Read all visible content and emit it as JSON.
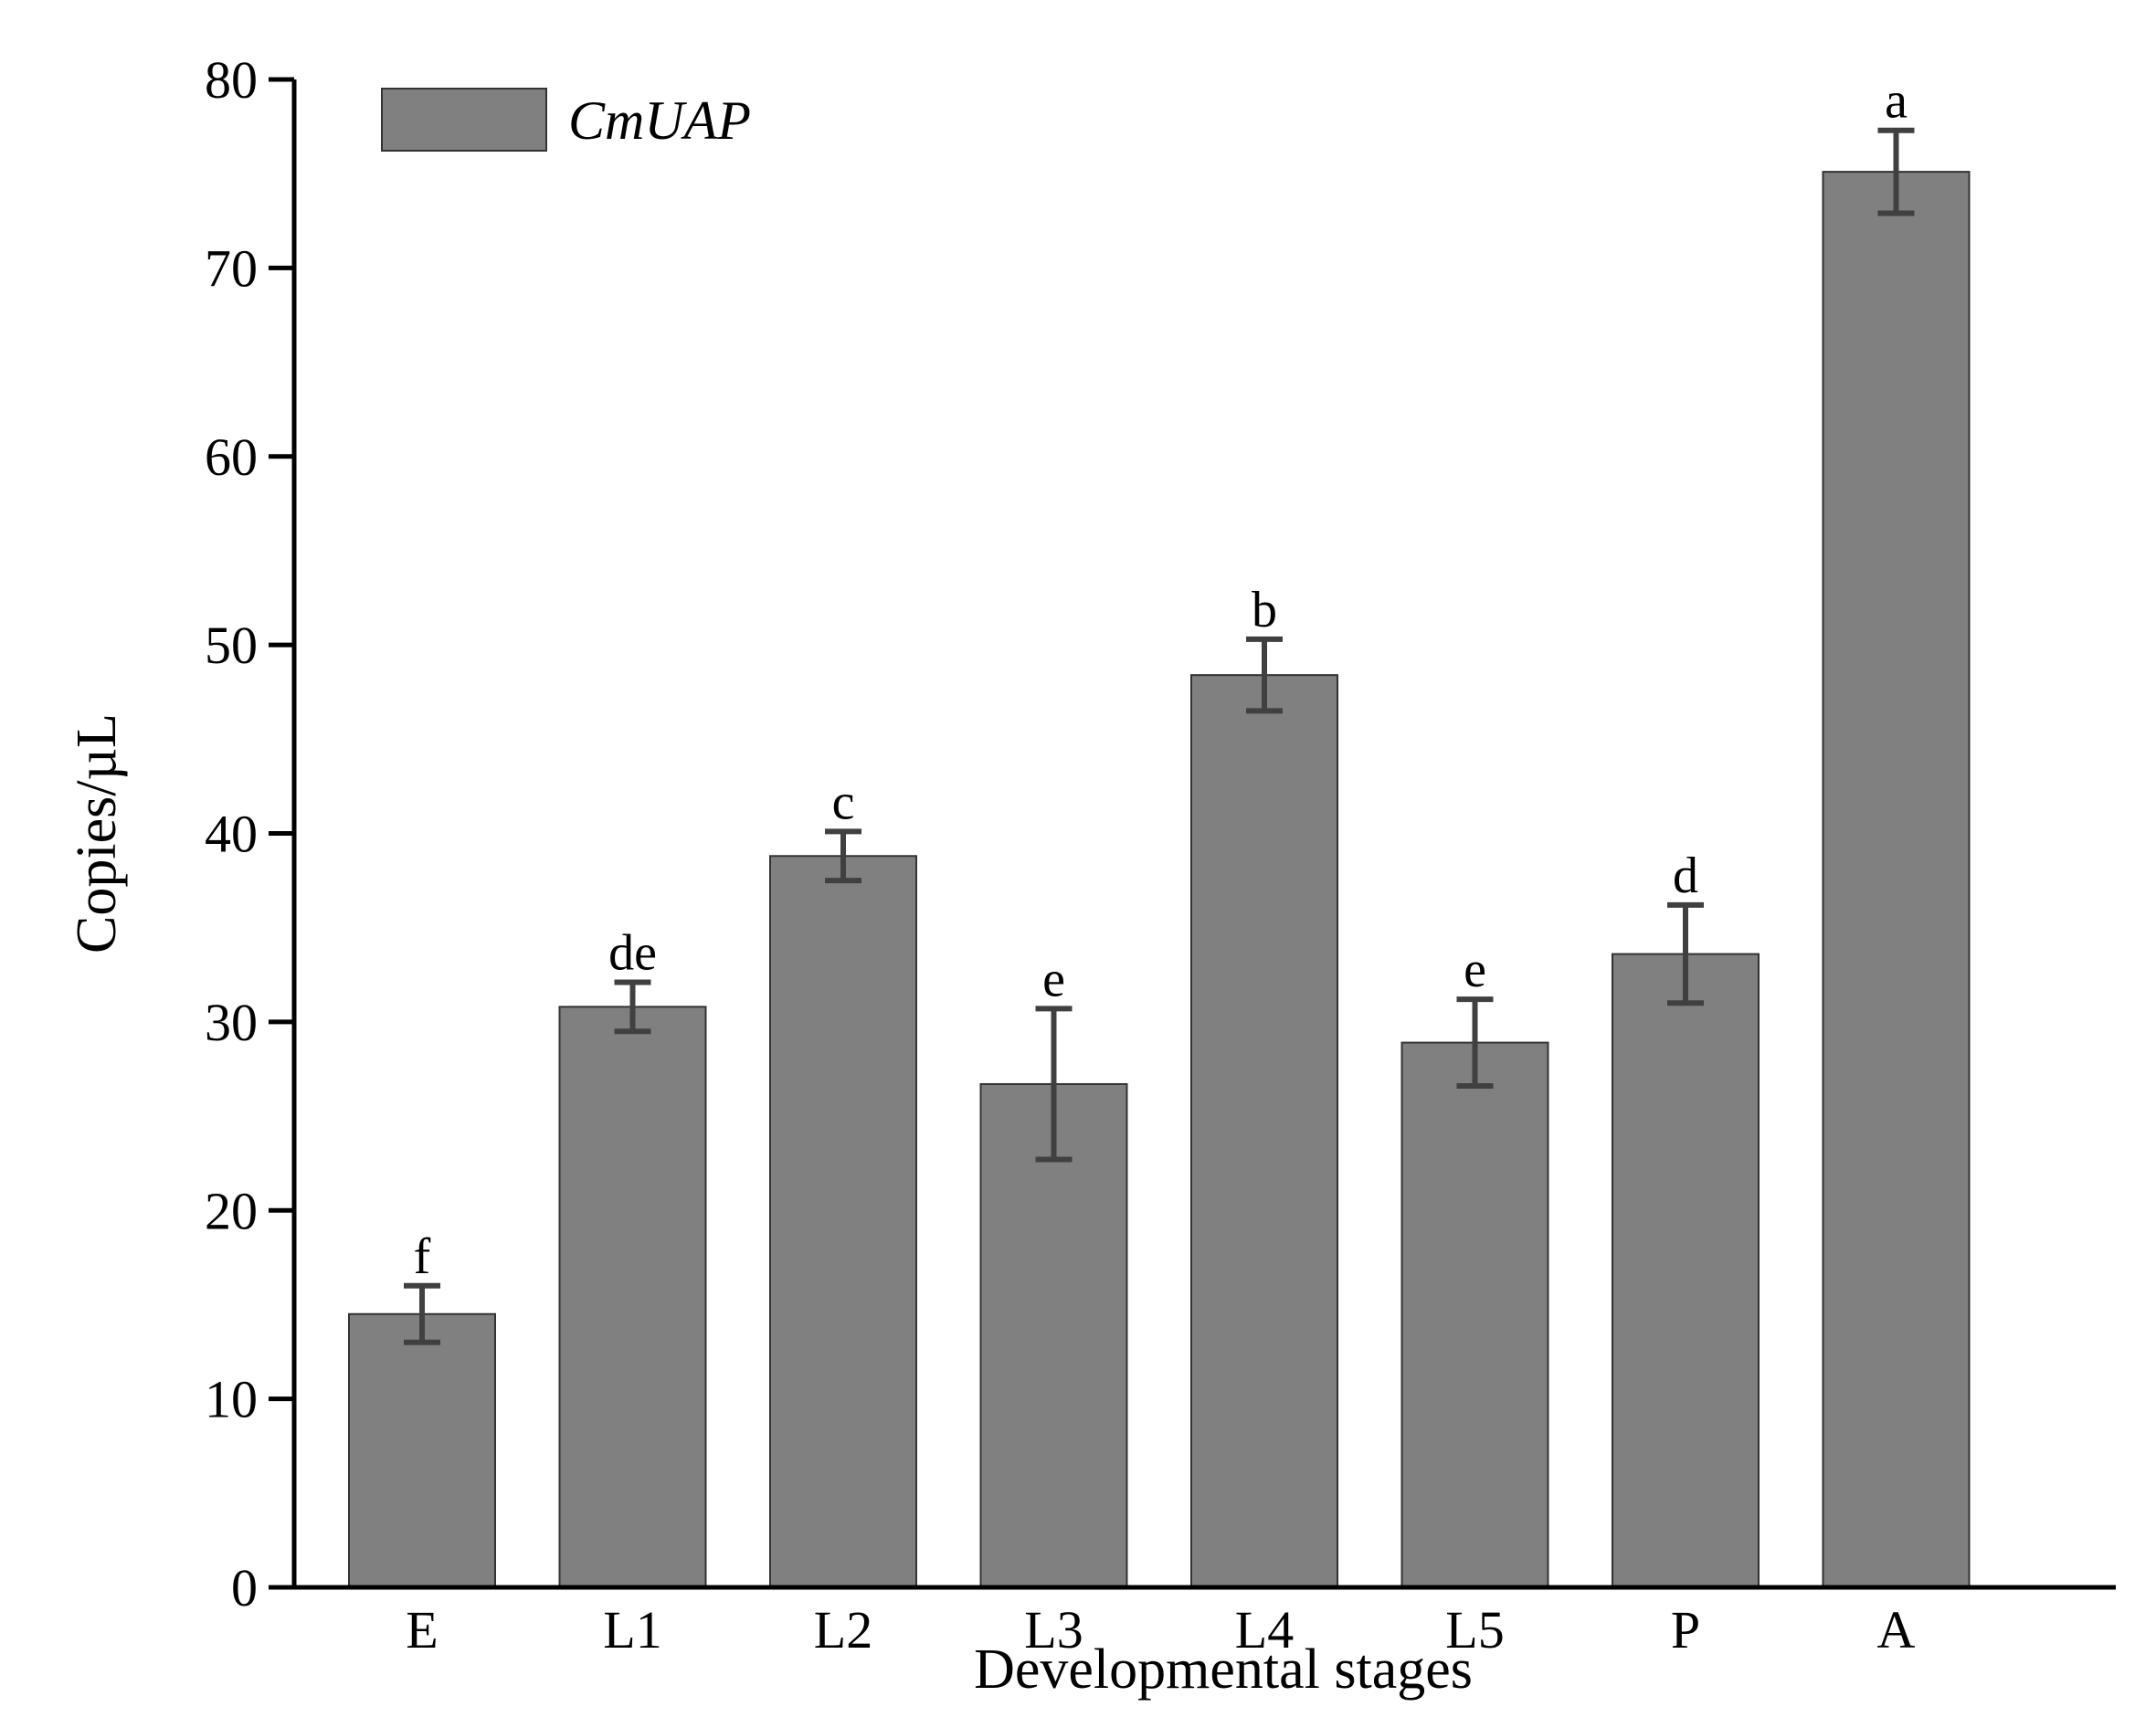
{
  "chart_data": {
    "type": "bar",
    "title": "",
    "xlabel": "Developmental stages",
    "ylabel": "Copies/µL",
    "ylim": [
      0,
      80
    ],
    "yticks": [
      0,
      10,
      20,
      30,
      40,
      50,
      60,
      70,
      80
    ],
    "grid": false,
    "legend_position": "top-left",
    "categories": [
      "E",
      "L1",
      "L2",
      "L3",
      "L4",
      "L5",
      "P",
      "A"
    ],
    "series": [
      {
        "name": "CmUAP",
        "color": "#808080",
        "values": [
          14.5,
          30.8,
          38.8,
          26.7,
          48.4,
          28.9,
          33.6,
          75.1
        ],
        "errors": [
          1.5,
          1.3,
          1.3,
          4.0,
          1.9,
          2.3,
          2.6,
          2.2
        ],
        "significance": [
          "f",
          "de",
          "c",
          "e",
          "b",
          "e",
          "d",
          "a"
        ]
      }
    ]
  }
}
